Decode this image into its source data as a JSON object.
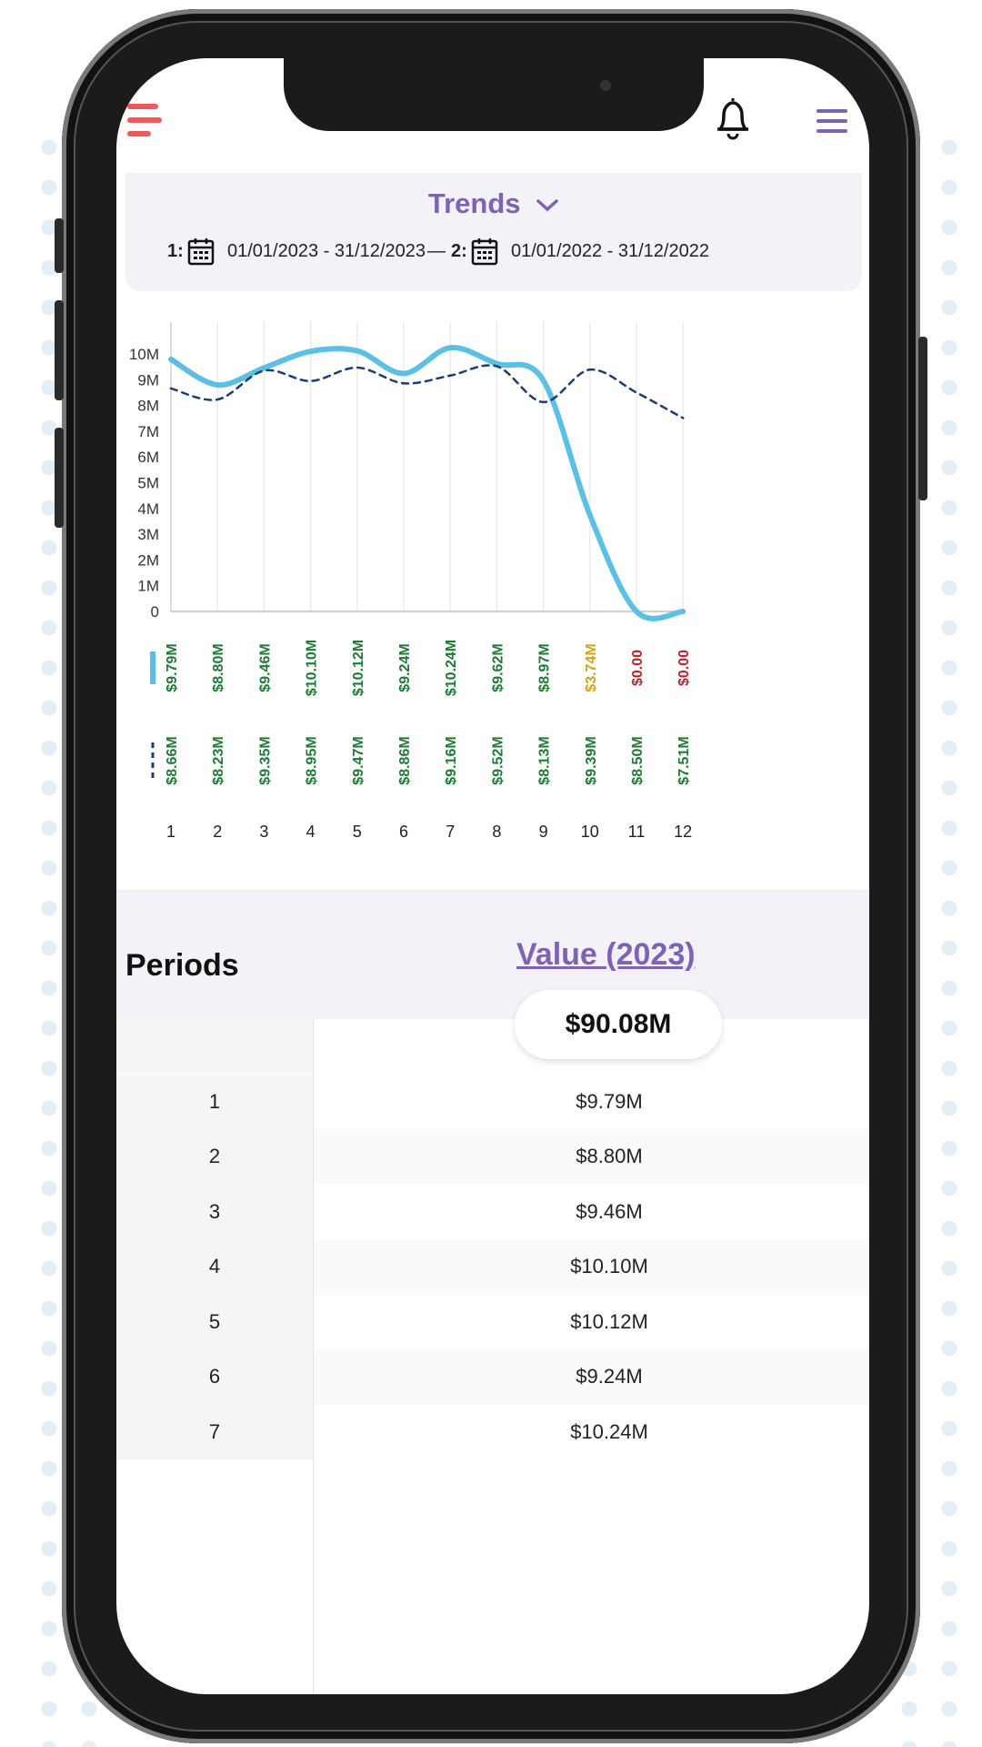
{
  "header": {
    "title": "Trends",
    "icons": {
      "left": "filter-menu-icon",
      "bell": "bell-icon",
      "right": "hamburger-menu-icon"
    },
    "accent": "#7e62b5",
    "left_icon_color": "#f0595a"
  },
  "date_ranges": {
    "range1_label": "1:",
    "range1": "01/01/2023 - 31/12/2023",
    "separator": "—",
    "range2_label": "2:",
    "range2": "01/01/2022 - 31/12/2022"
  },
  "chart_data": {
    "type": "line",
    "x": [
      1,
      2,
      3,
      4,
      5,
      6,
      7,
      8,
      9,
      10,
      11,
      12
    ],
    "ylim": [
      0,
      10
    ],
    "yticks": [
      "0",
      "1M",
      "2M",
      "3M",
      "4M",
      "5M",
      "6M",
      "7M",
      "8M",
      "9M",
      "10M"
    ],
    "grid": "vertical",
    "series": [
      {
        "style": "solid",
        "color": "#5bc0e3",
        "values": [
          9.79,
          8.8,
          9.46,
          10.1,
          10.12,
          9.24,
          10.24,
          9.62,
          8.97,
          3.74,
          0,
          0
        ],
        "labels": [
          "$9.79M",
          "$8.80M",
          "$9.46M",
          "$10.10M",
          "$10.12M",
          "$9.24M",
          "$10.24M",
          "$9.62M",
          "$8.97M",
          "$3.74M",
          "$0.00",
          "$0.00"
        ],
        "label_colors": [
          "#1e7a34",
          "#1e7a34",
          "#1e7a34",
          "#1e7a34",
          "#1e7a34",
          "#1e7a34",
          "#1e7a34",
          "#1e7a34",
          "#1e7a34",
          "#d1a21b",
          "#c0232b",
          "#c0232b"
        ]
      },
      {
        "style": "dashed",
        "color": "#1c3c74",
        "values": [
          8.66,
          8.23,
          9.35,
          8.95,
          9.47,
          8.86,
          9.16,
          9.52,
          8.13,
          9.39,
          8.5,
          7.51
        ],
        "labels": [
          "$8.66M",
          "$8.23M",
          "$9.35M",
          "$8.95M",
          "$9.47M",
          "$8.86M",
          "$9.16M",
          "$9.52M",
          "$8.13M",
          "$9.39M",
          "$8.50M",
          "$7.51M"
        ],
        "label_colors": [
          "#1e7a34",
          "#1e7a34",
          "#1e7a34",
          "#1e7a34",
          "#1e7a34",
          "#1e7a34",
          "#1e7a34",
          "#1e7a34",
          "#1e7a34",
          "#1e7a34",
          "#1e7a34",
          "#1e7a34"
        ]
      }
    ]
  },
  "table": {
    "col_period": "Periods",
    "col_value": "Value (2023)",
    "total": "$90.08M",
    "rows": [
      {
        "period": "1",
        "value": "$9.79M"
      },
      {
        "period": "2",
        "value": "$8.80M"
      },
      {
        "period": "3",
        "value": "$9.46M"
      },
      {
        "period": "4",
        "value": "$10.10M"
      },
      {
        "period": "5",
        "value": "$10.12M"
      },
      {
        "period": "6",
        "value": "$9.24M"
      },
      {
        "period": "7",
        "value": "$10.24M"
      }
    ]
  }
}
